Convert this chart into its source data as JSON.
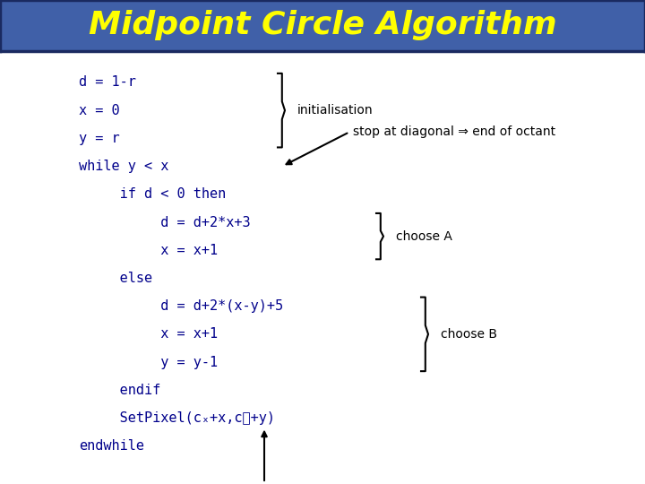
{
  "title": "Midpoint Circle Algorithm",
  "title_color": "#FFFF00",
  "title_bg_color": "#4060A8",
  "title_border_color": "#1a2a60",
  "bg_color": "#FFFFFF",
  "code_color": "#00008B",
  "ann_color": "#000000",
  "figsize": [
    7.2,
    5.4
  ],
  "dpi": 100,
  "title_fontsize": 26,
  "code_fontsize": 11,
  "ann_fontsize": 10,
  "lines": [
    {
      "text": "d = 1-r",
      "indent": 0
    },
    {
      "text": "x = 0",
      "indent": 0
    },
    {
      "text": "y = r",
      "indent": 0
    },
    {
      "text": "while y < x",
      "indent": 0
    },
    {
      "text": "     if d < 0 then",
      "indent": 1
    },
    {
      "text": "          d = d+2*x+3",
      "indent": 2
    },
    {
      "text": "          x = x+1",
      "indent": 2
    },
    {
      "text": "     else",
      "indent": 1
    },
    {
      "text": "          d = d+2*(x-y)+5",
      "indent": 2
    },
    {
      "text": "          x = x+1",
      "indent": 2
    },
    {
      "text": "          y = y-1",
      "indent": 2
    },
    {
      "text": "     endif",
      "indent": 1
    },
    {
      "text": "     SetPixel(cₓ+x,cᵧ+y)",
      "indent": 1
    },
    {
      "text": "endwhile",
      "indent": 0
    }
  ]
}
